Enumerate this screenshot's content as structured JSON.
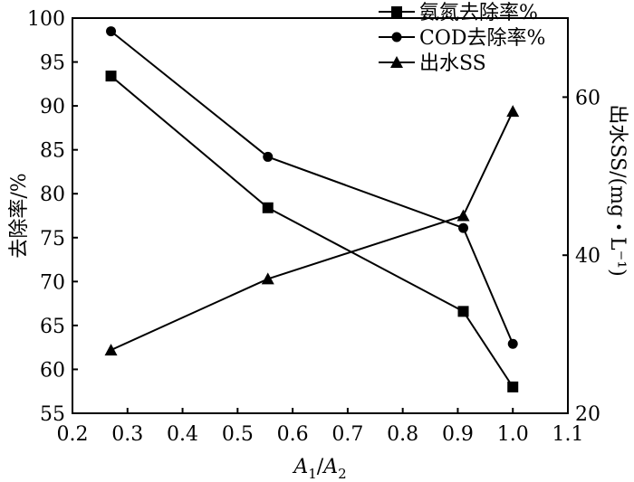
{
  "chart_data": {
    "type": "line",
    "x": [
      0.27,
      0.555,
      0.91,
      1.0
    ],
    "xlabel_parts": {
      "a1": "A",
      "s1": "1",
      "sep": "/",
      "a2": "A",
      "s2": "2"
    },
    "ylabel_left": "去除率/%",
    "ylabel_right": "出水SS/(mg・L⁻¹)",
    "xlim": [
      0.2,
      1.1
    ],
    "ylim_left": [
      55,
      100
    ],
    "ylim_right": [
      20,
      70
    ],
    "x_ticks": [
      "0.2",
      "0.3",
      "0.4",
      "0.5",
      "0.6",
      "0.7",
      "0.8",
      "0.9",
      "1.0",
      "1.1"
    ],
    "y_left_ticks": [
      "55",
      "60",
      "65",
      "70",
      "75",
      "80",
      "85",
      "90",
      "95",
      "100"
    ],
    "y_right_ticks": [
      "20",
      "40",
      "60"
    ],
    "series": [
      {
        "name": "氨氮去除率%",
        "axis": "left",
        "marker": "square",
        "values": [
          93.4,
          78.4,
          66.6,
          58.0
        ]
      },
      {
        "name": "COD去除率%",
        "axis": "left",
        "marker": "circle",
        "values": [
          98.5,
          84.2,
          76.1,
          62.9
        ]
      },
      {
        "name": "出水SS",
        "axis": "right",
        "marker": "triangle",
        "values": [
          28.0,
          37.0,
          45.0,
          58.2
        ]
      }
    ],
    "legend_position": "top-right",
    "grid": false
  }
}
